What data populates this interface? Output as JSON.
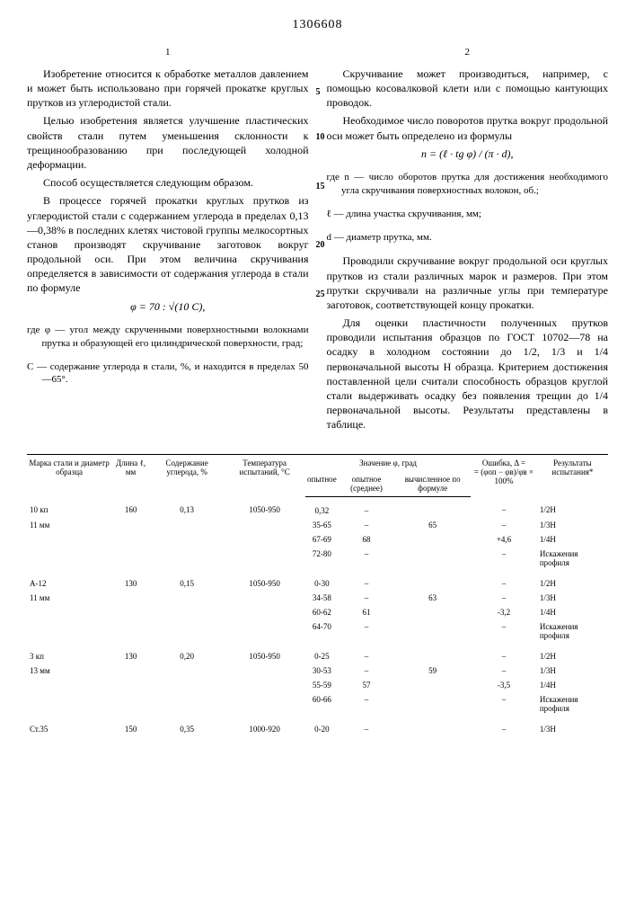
{
  "document_number": "1306608",
  "left_column": {
    "number": "1",
    "p1": "Изобретение относится к обработке металлов давлением и может быть использовано при горячей прокатке круглых прутков из углеродистой стали.",
    "p2": "Целью изобретения является улучшение пластических свойств стали путем уменьшения склонности к трещинообразованию при последующей холодной деформации.",
    "p3": "Способ осуществляется следующим образом.",
    "p4": "В процессе горячей прокатки круглых прутков из углеродистой стали с содержанием углерода в пределах 0,13—0,38% в последних клетях чистовой группы мелкосортных станов производят скручивание заготовок вокруг продольной оси. При этом величина скручивания определяется в зависимости от содержания углерода в стали по формуле",
    "formula1": "φ = 70 : √(10 C),",
    "where1": "где φ — угол между скрученными поверхностными волокнами прутка и образующей его цилиндрической поверхности, град;",
    "where2": "C — содержание углерода в стали, %, и находится в пределах 50—65°."
  },
  "right_column": {
    "number": "2",
    "p1": "Скручивание может производиться, например, с помощью косовалковой клети или с помощью кантующих проводок.",
    "p2": "Необходимое число поворотов прутка вокруг продольной оси может быть определено из формулы",
    "formula1": "n = (ℓ · tg φ) / (π · d),",
    "where1": "где n — число оборотов прутка для достижения необходимого угла скручивания поверхностных волокон, об.;",
    "where2": "ℓ — длина участка скручивания, мм;",
    "where3": "d — диаметр прутка, мм.",
    "p3": "Проводили скручивание вокруг продольной оси круглых прутков из стали различных марок и размеров. При этом прутки скручивали на различные углы при температуре заготовок, соответствующей концу прокатки.",
    "p4": "Для оценки пластичности полученных прутков проводили испытания образцов по ГОСТ 10702—78 на осадку в холодном состоянии до 1/2, 1/3 и 1/4 первоначальной высоты H образца. Критерием достижения поставленной цели считали способность образцов круглой стали выдерживать осадку без появления трещин до 1/4 первоначальной высоты. Результаты представлены в таблице.",
    "ln5": "5",
    "ln10": "10",
    "ln15": "15",
    "ln20": "20",
    "ln25": "25"
  },
  "table": {
    "headers": {
      "c1": "Марка стали и диаметр образца",
      "c2": "Длина ℓ, мм",
      "c3": "Содержание углерода, %",
      "c4": "Температура испытаний, °C",
      "c5": "Значение φ, град",
      "c5a": "опытное",
      "c5b": "опытное (среднее)",
      "c5c": "вычисленное по формуле",
      "c6": "Ошибка, Δ =",
      "c6f": "= (φоп − φв)/φв × 100%",
      "c7": "Результаты испытания*"
    },
    "rows": [
      {
        "a": "10 кп",
        "b": "160",
        "c": "0,13",
        "d": "1050-950",
        "e": "0,32",
        "f": "–",
        "g": "",
        "h": "–",
        "i": "1/2H"
      },
      {
        "a": "11 мм",
        "b": "",
        "c": "",
        "d": "",
        "e": "35-65",
        "f": "–",
        "g": "65",
        "h": "–",
        "i": "1/3H"
      },
      {
        "a": "",
        "b": "",
        "c": "",
        "d": "",
        "e": "67-69",
        "f": "68",
        "g": "",
        "h": "+4,6",
        "i": "1/4H"
      },
      {
        "a": "",
        "b": "",
        "c": "",
        "d": "",
        "e": "72-80",
        "f": "–",
        "g": "",
        "h": "–",
        "i": "Искажения профиля"
      },
      {
        "a": "А-12",
        "b": "130",
        "c": "0,15",
        "d": "1050-950",
        "e": "0-30",
        "f": "–",
        "g": "",
        "h": "–",
        "i": "1/2H"
      },
      {
        "a": "11 мм",
        "b": "",
        "c": "",
        "d": "",
        "e": "34-58",
        "f": "–",
        "g": "63",
        "h": "–",
        "i": "1/3H"
      },
      {
        "a": "",
        "b": "",
        "c": "",
        "d": "",
        "e": "60-62",
        "f": "61",
        "g": "",
        "h": "-3,2",
        "i": "1/4H"
      },
      {
        "a": "",
        "b": "",
        "c": "",
        "d": "",
        "e": "64-70",
        "f": "–",
        "g": "",
        "h": "–",
        "i": "Искажения профиля"
      },
      {
        "a": "3 кп",
        "b": "130",
        "c": "0,20",
        "d": "1050-950",
        "e": "0-25",
        "f": "–",
        "g": "",
        "h": "–",
        "i": "1/2H"
      },
      {
        "a": "13 мм",
        "b": "",
        "c": "",
        "d": "",
        "e": "30-53",
        "f": "–",
        "g": "59",
        "h": "–",
        "i": "1/3H"
      },
      {
        "a": "",
        "b": "",
        "c": "",
        "d": "",
        "e": "55-59",
        "f": "57",
        "g": "",
        "h": "-3,5",
        "i": "1/4H"
      },
      {
        "a": "",
        "b": "",
        "c": "",
        "d": "",
        "e": "60-66",
        "f": "–",
        "g": "",
        "h": "–",
        "i": "Искажения профиля"
      },
      {
        "a": "Ст.35",
        "b": "150",
        "c": "0,35",
        "d": "1000-920",
        "e": "0-20",
        "f": "–",
        "g": "",
        "h": "–",
        "i": "1/3H"
      }
    ]
  }
}
